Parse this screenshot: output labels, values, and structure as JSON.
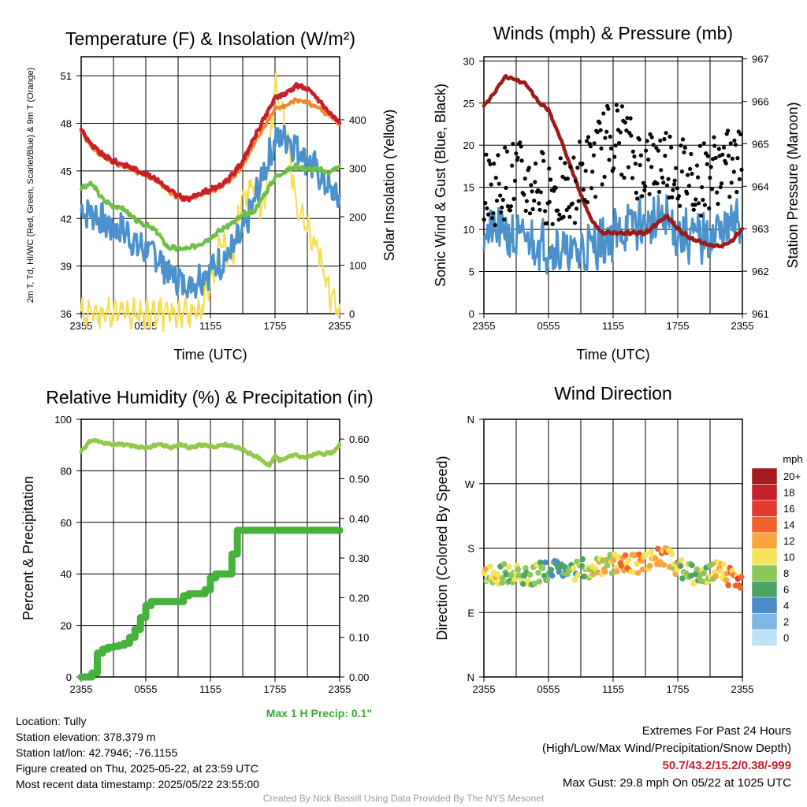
{
  "colors": {
    "red": "#c8202a",
    "orange": "#f08a30",
    "green": "#6cbf44",
    "blue": "#4b92cc",
    "yellow": "#f5de55",
    "maroon": "#9b1b1b",
    "black": "#000000",
    "rh": "#93c84a",
    "precip": "#46b23c",
    "extremes": "#c8202a",
    "maxprecip": "#3aa832"
  },
  "chart_data": [
    {
      "type": "line",
      "title": "Temperature (F) & Insolation (W/m²)",
      "xlabel": "Time (UTC)",
      "ylabel": "2m T, Td, HI/WC (Red, Green, Scarlet/Blue) & 9m T (Orange)",
      "ylabel_right": "Solar Insolation (Yellow)",
      "x_ticks": [
        "2355",
        "0555",
        "1155",
        "1755",
        "2355"
      ],
      "y_ticks": [
        "36",
        "39",
        "42",
        "45",
        "48",
        "51"
      ],
      "y_ticks_right": [
        "0",
        "100",
        "200",
        "300",
        "400"
      ],
      "ylim": [
        36,
        52.2
      ],
      "ylim_right": [
        0,
        530
      ],
      "hours": [
        0,
        1,
        2,
        3,
        4,
        5,
        6,
        7,
        8,
        9,
        10,
        11,
        12,
        13,
        14,
        15,
        16,
        17,
        18,
        19,
        20,
        21,
        22,
        23,
        24
      ],
      "series": [
        {
          "key": "temp_2m",
          "axis": "left",
          "values": [
            47.6,
            46.6,
            46.0,
            45.6,
            45.4,
            45.1,
            44.8,
            44.5,
            43.9,
            43.4,
            43.2,
            43.6,
            43.8,
            44.1,
            44.7,
            45.6,
            47.0,
            48.3,
            49.6,
            49.9,
            50.4,
            50.2,
            49.5,
            48.7,
            48.1
          ]
        },
        {
          "key": "temp_9m",
          "axis": "left",
          "values": [
            47.5,
            46.5,
            45.9,
            45.5,
            45.3,
            45.0,
            44.7,
            44.4,
            43.8,
            43.3,
            43.2,
            43.5,
            43.7,
            44.0,
            44.5,
            45.3,
            46.6,
            47.8,
            48.9,
            49.1,
            49.5,
            49.3,
            49.0,
            48.5,
            48.0
          ]
        },
        {
          "key": "dewpoint",
          "axis": "left",
          "values": [
            43.9,
            44.2,
            43.2,
            42.8,
            42.6,
            41.9,
            41.6,
            41.2,
            40.2,
            40.1,
            40.1,
            40.4,
            40.8,
            41.3,
            41.7,
            42.2,
            42.4,
            43.5,
            44.6,
            45.0,
            45.3,
            45.1,
            45.1,
            44.9,
            45.3
          ]
        },
        {
          "key": "wind_chill",
          "axis": "left",
          "values": [
            42.5,
            42.4,
            41.8,
            41.3,
            41.3,
            40.4,
            40.0,
            39.7,
            38.7,
            38.2,
            37.8,
            38.3,
            38.8,
            39.2,
            40.0,
            41.0,
            43.0,
            45.0,
            46.9,
            47.2,
            46.5,
            45.8,
            44.8,
            43.9,
            43.2
          ]
        },
        {
          "key": "insolation",
          "axis": "right",
          "values": [
            0,
            0,
            0,
            0,
            0,
            0,
            0,
            0,
            0,
            0,
            0,
            10,
            60,
            150,
            110,
            250,
            260,
            210,
            480,
            380,
            230,
            170,
            130,
            50,
            2
          ]
        }
      ]
    },
    {
      "type": "scatter",
      "title": "Winds (mph) & Pressure (mb)",
      "xlabel": "Time (UTC)",
      "ylabel": "Sonic Wind & Gust (Blue, Black)",
      "ylabel_right": "Station Pressure (Maroon)",
      "x_ticks": [
        "2355",
        "0555",
        "1155",
        "1755",
        "2355"
      ],
      "y_ticks": [
        "0",
        "5",
        "10",
        "15",
        "20",
        "25",
        "30"
      ],
      "y_ticks_right": [
        "961",
        "962",
        "963",
        "964",
        "965",
        "966",
        "967"
      ],
      "ylim": [
        0,
        30.5
      ],
      "ylim_right": [
        961,
        967.05
      ],
      "hours": [
        0,
        1,
        2,
        3,
        4,
        5,
        6,
        7,
        8,
        9,
        10,
        11,
        12,
        13,
        14,
        15,
        16,
        17,
        18,
        19,
        20,
        21,
        22,
        23,
        24
      ],
      "series": [
        {
          "key": "pressure",
          "axis": "right",
          "values": [
            965.9,
            966.2,
            966.6,
            966.5,
            966.4,
            966.0,
            965.8,
            965.2,
            964.5,
            963.8,
            963.2,
            962.9,
            962.9,
            962.9,
            962.9,
            962.9,
            963.1,
            963.3,
            963.0,
            962.8,
            962.7,
            962.6,
            962.6,
            962.7,
            963.0
          ]
        },
        {
          "key": "sonic_wind",
          "axis": "left",
          "values": [
            10.0,
            9.6,
            9.8,
            8.6,
            9.0,
            8.4,
            8.1,
            7.6,
            7.1,
            7.3,
            8.0,
            8.6,
            9.3,
            10.1,
            10.8,
            10.6,
            10.9,
            11.2,
            9.4,
            9.2,
            8.9,
            9.1,
            9.8,
            10.2,
            10.9
          ]
        },
        {
          "key": "gust",
          "axis": "left",
          "values": [
            15.0,
            14.8,
            15.6,
            16.5,
            15.0,
            15.2,
            14.8,
            14.2,
            13.8,
            16.6,
            17.2,
            19.6,
            21.2,
            20.4,
            18.0,
            17.6,
            17.6,
            18.4,
            16.6,
            16.6,
            15.8,
            16.8,
            17.4,
            17.2,
            18.0
          ]
        }
      ]
    },
    {
      "type": "line",
      "title": "Relative Humidity (%) & Precipitation (in)",
      "ylabel": "Percent & Precipitation",
      "x_ticks": [
        "2355",
        "0555",
        "1155",
        "1755",
        "2355"
      ],
      "y_ticks": [
        "0",
        "20",
        "40",
        "60",
        "80",
        "100"
      ],
      "y_ticks_right": [
        "0.00",
        "0.10",
        "0.20",
        "0.30",
        "0.40",
        "0.50",
        "0.60"
      ],
      "ylim": [
        0,
        100
      ],
      "ylim_right": [
        0,
        0.65
      ],
      "hours": [
        0,
        0.5,
        1,
        1.5,
        2,
        2.5,
        3,
        3.5,
        4,
        4.5,
        5,
        5.5,
        6,
        6.5,
        7,
        7.5,
        8,
        8.5,
        9,
        9.5,
        10,
        10.5,
        11,
        11.5,
        12,
        12.5,
        13,
        13.5,
        14,
        14.5,
        15,
        15.5,
        16,
        16.5,
        17,
        17.5,
        18,
        18.5,
        19,
        19.5,
        20,
        20.5,
        21,
        21.5,
        22,
        22.5,
        23,
        23.5,
        24
      ],
      "series": [
        {
          "key": "rh",
          "axis": "left",
          "values": [
            87.5,
            90.0,
            92.0,
            91.5,
            91.0,
            90.5,
            90.0,
            90.5,
            90.0,
            90.0,
            89.5,
            89.0,
            89.0,
            89.5,
            90.0,
            90.0,
            89.5,
            89.0,
            90.0,
            90.0,
            89.0,
            89.5,
            90.0,
            90.0,
            89.5,
            89.0,
            90.0,
            90.0,
            89.5,
            89.0,
            88.5,
            87.0,
            86.0,
            85.0,
            83.5,
            82.0,
            86.0,
            84.0,
            85.0,
            86.0,
            86.0,
            85.0,
            85.5,
            86.0,
            87.0,
            86.5,
            87.0,
            87.5,
            90.0
          ]
        },
        {
          "key": "precip",
          "axis": "right",
          "values": [
            0.0,
            0.0,
            0.01,
            0.06,
            0.07,
            0.075,
            0.077,
            0.08,
            0.085,
            0.1,
            0.12,
            0.15,
            0.18,
            0.19,
            0.19,
            0.19,
            0.19,
            0.19,
            0.19,
            0.205,
            0.21,
            0.21,
            0.21,
            0.22,
            0.25,
            0.26,
            0.26,
            0.26,
            0.31,
            0.37,
            0.37,
            0.37,
            0.37,
            0.37,
            0.37,
            0.37,
            0.37,
            0.37,
            0.37,
            0.37,
            0.37,
            0.37,
            0.37,
            0.37,
            0.37,
            0.37,
            0.37,
            0.37,
            0.37
          ]
        }
      ],
      "annotation": "Max 1 H Precip: 0.1\""
    },
    {
      "type": "scatter",
      "title": "Wind Direction",
      "ylabel": "Direction (Colored By Speed)",
      "x_ticks": [
        "2355",
        "0555",
        "1155",
        "1755",
        "2355"
      ],
      "y_ticks": [
        "N",
        "E",
        "S",
        "W",
        "N"
      ],
      "ylim": [
        0,
        360
      ],
      "hours": [
        0,
        1,
        2,
        3,
        4,
        5,
        6,
        7,
        8,
        9,
        10,
        11,
        12,
        13,
        14,
        15,
        16,
        17,
        18,
        19,
        20,
        21,
        22,
        23,
        24
      ],
      "series": [
        {
          "key": "direction",
          "values": [
            140,
            143,
            145,
            147,
            141,
            145,
            150,
            148,
            145,
            152,
            150,
            155,
            158,
            158,
            157,
            162,
            166,
            168,
            155,
            146,
            140,
            145,
            150,
            138,
            135
          ]
        },
        {
          "key": "speed",
          "values": [
            11,
            10,
            8,
            9,
            8,
            7,
            6,
            6,
            6,
            8,
            10,
            10,
            10,
            11,
            12,
            12,
            11,
            12,
            9,
            8,
            8,
            9,
            10,
            12,
            13
          ]
        }
      ],
      "legend": {
        "title": "mph",
        "labels": [
          "20+",
          "18",
          "16",
          "14",
          "12",
          "10",
          "8",
          "6",
          "4",
          "2",
          "0"
        ],
        "colors": [
          "#a31b1f",
          "#c8202a",
          "#e03b2d",
          "#f0622e",
          "#f8a53f",
          "#f5e35a",
          "#8cc75a",
          "#4ba366",
          "#4a8cc8",
          "#7fb8e6",
          "#bfe3f6"
        ]
      }
    }
  ],
  "info": {
    "location": "Location: Tully",
    "elevation": "Station elevation: 378.379 m",
    "latlon": "Station lat/lon: 42.7946; -76.1155",
    "created": "Figure created on Thu, 2025-05-22, at 23:59 UTC",
    "recent": "Most recent data timestamp: 2025/05/22 23:55:00",
    "extremes_title": "Extremes For Past 24 Hours",
    "extremes_sub": "(High/Low/Max Wind/Precipitation/Snow Depth)",
    "extremes_values": "50.7/43.2/15.2/0.38/-999",
    "max_gust": "Max Gust: 29.8 mph On 05/22 at 1025 UTC",
    "credit": "Created By Nick Bassill Using Data Provided By The NYS Mesonet"
  }
}
